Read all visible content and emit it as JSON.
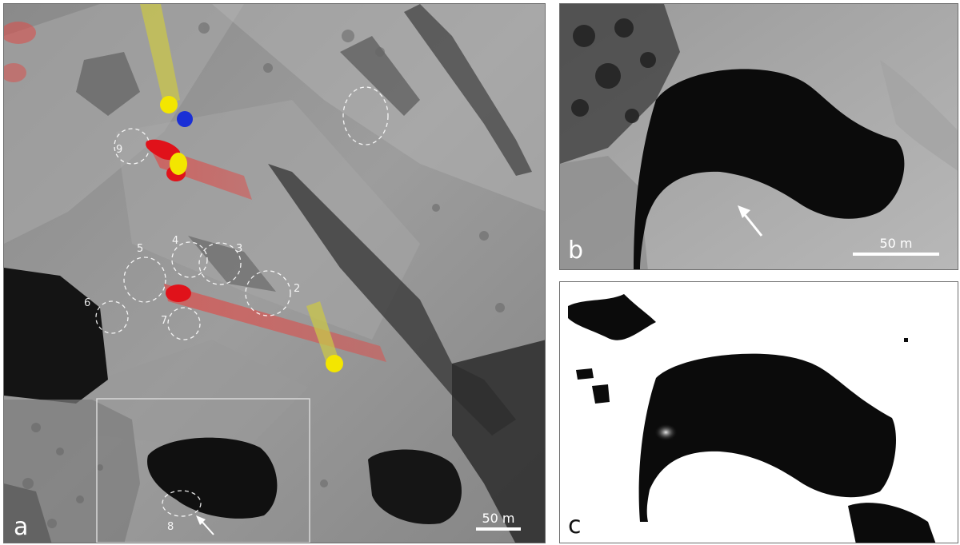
{
  "panels": {
    "a": {
      "label": "a",
      "scale_label": "50 m"
    },
    "b": {
      "label": "b",
      "scale_label": "50 m"
    },
    "c": {
      "label": "c"
    }
  },
  "annotations": {
    "circle_numbers": [
      "9",
      "5",
      "4",
      "3",
      "2",
      "6",
      "7",
      "8"
    ]
  },
  "colors": {
    "red_marker": "#e0121a",
    "red_track": "#d9524f",
    "yellow_marker": "#f3e600",
    "yellow_track": "#c9c64a",
    "blue_marker": "#1a2fd6",
    "dashed_circle": "#ffffff",
    "inset_box": "#d8d8d8"
  }
}
